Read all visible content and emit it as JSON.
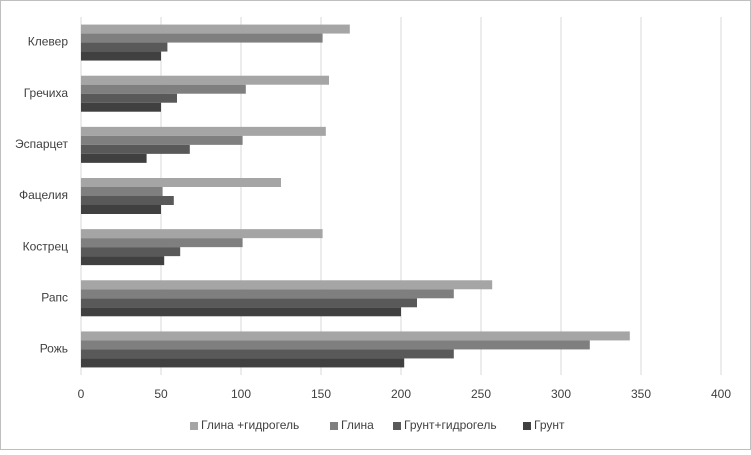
{
  "chart_data": {
    "type": "hbar",
    "categories": [
      "Клевер",
      "Гречиха",
      "Эспарцет",
      "Фацелия",
      "Кострец",
      "Рапс",
      "Рожь"
    ],
    "series": [
      {
        "name": "Глина +гидрогель",
        "color": "#a5a5a5",
        "values": [
          168,
          155,
          153,
          125,
          151,
          257,
          343
        ]
      },
      {
        "name": "Глина",
        "color": "#7f7f7f",
        "values": [
          151,
          103,
          101,
          51,
          101,
          233,
          318
        ]
      },
      {
        "name": "Грунт+гидрогель",
        "color": "#595959",
        "values": [
          54,
          60,
          68,
          58,
          62,
          210,
          233
        ]
      },
      {
        "name": "Грунт",
        "color": "#404040",
        "values": [
          50,
          50,
          41,
          50,
          52,
          200,
          202
        ]
      }
    ],
    "xlim": [
      0,
      400
    ],
    "xticks": [
      0,
      50,
      100,
      150,
      200,
      250,
      300,
      350,
      400
    ],
    "grid": true,
    "legend": "bottom"
  }
}
